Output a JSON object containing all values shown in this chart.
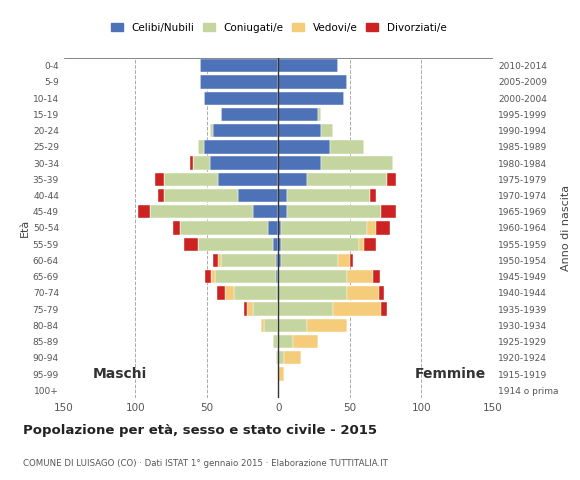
{
  "age_groups": [
    "0-4",
    "5-9",
    "10-14",
    "15-19",
    "20-24",
    "25-29",
    "30-34",
    "35-39",
    "40-44",
    "45-49",
    "50-54",
    "55-59",
    "60-64",
    "65-69",
    "70-74",
    "75-79",
    "80-84",
    "85-89",
    "90-94",
    "95-99",
    "100+"
  ],
  "birth_years": [
    "2010-2014",
    "2005-2009",
    "2000-2004",
    "1995-1999",
    "1990-1994",
    "1985-1989",
    "1980-1984",
    "1975-1979",
    "1970-1974",
    "1965-1969",
    "1960-1964",
    "1955-1959",
    "1950-1954",
    "1945-1949",
    "1940-1944",
    "1935-1939",
    "1930-1934",
    "1925-1929",
    "1920-1924",
    "1915-1919",
    "1914 o prima"
  ],
  "males": {
    "celibe": [
      55,
      55,
      52,
      40,
      46,
      52,
      48,
      42,
      28,
      18,
      7,
      4,
      2,
      2,
      1,
      0,
      0,
      0,
      0,
      0,
      0
    ],
    "coniugato": [
      0,
      0,
      0,
      0,
      2,
      4,
      12,
      38,
      52,
      72,
      62,
      52,
      38,
      42,
      30,
      18,
      10,
      4,
      2,
      0,
      0
    ],
    "vedovo": [
      0,
      0,
      0,
      0,
      0,
      0,
      0,
      0,
      0,
      0,
      0,
      0,
      2,
      3,
      6,
      4,
      2,
      0,
      0,
      0,
      0
    ],
    "divorziato": [
      0,
      0,
      0,
      0,
      0,
      0,
      2,
      6,
      4,
      8,
      5,
      10,
      4,
      4,
      6,
      2,
      0,
      0,
      0,
      0,
      0
    ]
  },
  "females": {
    "nubile": [
      42,
      48,
      46,
      28,
      30,
      36,
      30,
      20,
      6,
      6,
      2,
      2,
      2,
      0,
      0,
      0,
      0,
      0,
      0,
      0,
      0
    ],
    "coniugata": [
      0,
      0,
      0,
      2,
      8,
      24,
      50,
      56,
      58,
      66,
      60,
      54,
      40,
      48,
      48,
      38,
      20,
      10,
      4,
      0,
      0
    ],
    "vedova": [
      0,
      0,
      0,
      0,
      0,
      0,
      0,
      0,
      0,
      0,
      6,
      4,
      8,
      18,
      22,
      34,
      28,
      18,
      12,
      4,
      0
    ],
    "divorziata": [
      0,
      0,
      0,
      0,
      0,
      0,
      0,
      6,
      4,
      10,
      10,
      8,
      2,
      5,
      4,
      4,
      0,
      0,
      0,
      0,
      0
    ]
  },
  "colors": {
    "celibe_nubile": "#4E72B8",
    "coniugato_a": "#C5D5A0",
    "vedovo_a": "#F5CC7A",
    "divorziato_a": "#CC2222"
  },
  "title": "Popolazione per età, sesso e stato civile - 2015",
  "subtitle": "COMUNE DI LUISAGO (CO) · Dati ISTAT 1° gennaio 2015 · Elaborazione TUTTITALIA.IT",
  "legend_labels": [
    "Celibi/Nubili",
    "Coniugati/e",
    "Vedovi/e",
    "Divorziati/e"
  ],
  "label_maschi": "Maschi",
  "label_femmine": "Femmine",
  "ylabel_left": "Età",
  "ylabel_right": "Anno di nascita",
  "xlim": 150,
  "xticks": [
    -150,
    -100,
    -50,
    0,
    50,
    100,
    150
  ],
  "xticklabels": [
    "150",
    "100",
    "50",
    "0",
    "50",
    "100",
    "150"
  ],
  "background_color": "#FFFFFF",
  "grid_color": "#AAAAAA"
}
